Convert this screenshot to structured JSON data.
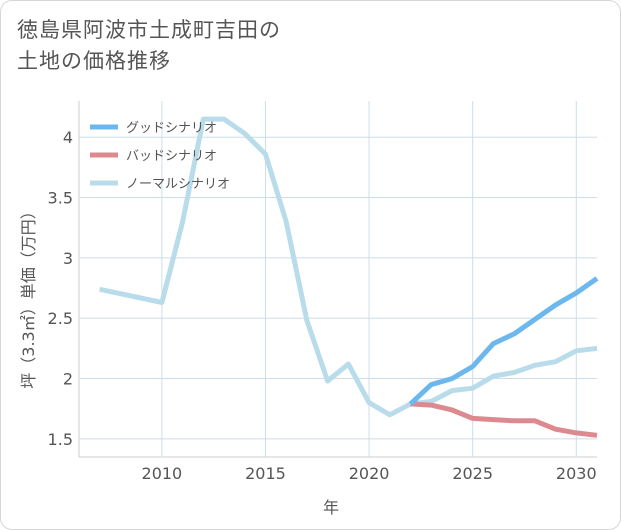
{
  "title_line1": "徳島県阿波市土成町吉田の",
  "title_line2": "土地の価格推移",
  "chart_data": {
    "type": "line",
    "title": "徳島県阿波市土成町吉田の土地の価格推移",
    "xlabel": "年",
    "ylabel": "坪（3.3㎡）単価（万円）",
    "xlim": [
      2006,
      2031
    ],
    "ylim": [
      1.35,
      4.3
    ],
    "xticks": [
      2010,
      2015,
      2020,
      2025,
      2030
    ],
    "yticks": [
      1.5,
      2,
      2.5,
      3,
      3.5,
      4
    ],
    "ytick_labels": [
      "1.5",
      "2",
      "2.5",
      "3",
      "3.5",
      "4"
    ],
    "grid": true,
    "legend_position": "top-left",
    "series": [
      {
        "name": "グッドシナリオ",
        "color": "#6cb8ee",
        "x": [
          2022,
          2023,
          2024,
          2025,
          2026,
          2027,
          2028,
          2029,
          2030,
          2031
        ],
        "y": [
          1.79,
          1.95,
          2.0,
          2.1,
          2.29,
          2.37,
          2.49,
          2.61,
          2.71,
          2.83
        ]
      },
      {
        "name": "バッドシナリオ",
        "color": "#dc8a90",
        "x": [
          2022,
          2023,
          2024,
          2025,
          2026,
          2027,
          2028,
          2029,
          2030,
          2031
        ],
        "y": [
          1.79,
          1.78,
          1.74,
          1.67,
          1.66,
          1.65,
          1.65,
          1.58,
          1.55,
          1.53
        ]
      },
      {
        "name": "ノーマルシナリオ",
        "color": "#b9dcea",
        "x": [
          2007,
          2010,
          2011,
          2012,
          2013,
          2014,
          2015,
          2016,
          2017,
          2018,
          2019,
          2020,
          2021,
          2022,
          2023,
          2024,
          2025,
          2026,
          2027,
          2028,
          2029,
          2030,
          2031
        ],
        "y": [
          2.74,
          2.63,
          3.3,
          4.15,
          4.15,
          4.03,
          3.86,
          3.3,
          2.48,
          1.98,
          2.12,
          1.8,
          1.7,
          1.79,
          1.81,
          1.9,
          1.92,
          2.02,
          2.05,
          2.11,
          2.14,
          2.23,
          2.25
        ]
      }
    ]
  }
}
